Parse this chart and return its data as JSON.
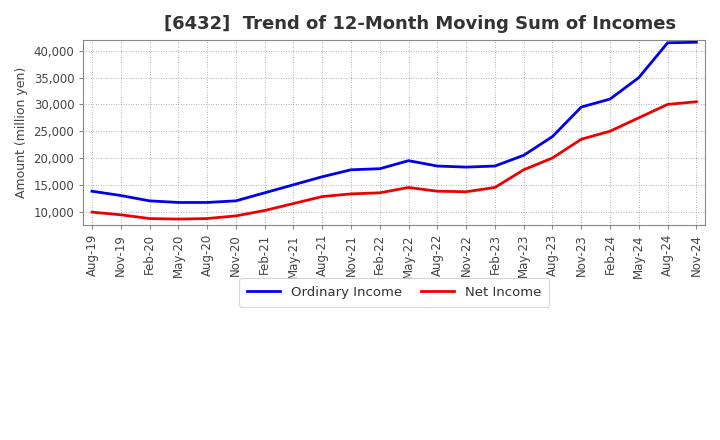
{
  "title": "[6432]  Trend of 12-Month Moving Sum of Incomes",
  "ylabel": "Amount (million yen)",
  "background_color": "#ffffff",
  "plot_bg_color": "#ffffff",
  "grid_color": "#999999",
  "ordinary_income_color": "#0000ee",
  "net_income_color": "#ee0000",
  "ordinary_income_label": "Ordinary Income",
  "net_income_label": "Net Income",
  "x_labels": [
    "Aug-19",
    "Nov-19",
    "Feb-20",
    "May-20",
    "Aug-20",
    "Nov-20",
    "Feb-21",
    "May-21",
    "Aug-21",
    "Nov-21",
    "Feb-22",
    "May-22",
    "Aug-22",
    "Nov-22",
    "Feb-23",
    "May-23",
    "Aug-23",
    "Nov-23",
    "Feb-24",
    "May-24",
    "Aug-24",
    "Nov-24"
  ],
  "ordinary_income": [
    13800,
    13000,
    12000,
    11700,
    11700,
    12000,
    13500,
    15000,
    16500,
    17800,
    18000,
    19500,
    18500,
    18300,
    18500,
    20500,
    24000,
    29500,
    31000,
    35000,
    41500,
    41600
  ],
  "net_income": [
    9900,
    9400,
    8700,
    8600,
    8700,
    9200,
    10200,
    11500,
    12800,
    13300,
    13500,
    14500,
    13800,
    13700,
    14500,
    17800,
    20000,
    23500,
    25000,
    27500,
    30000,
    30500
  ],
  "ylim_min": 7500,
  "ylim_max": 42000,
  "yticks": [
    10000,
    15000,
    20000,
    25000,
    30000,
    35000,
    40000
  ],
  "ytick_labels": [
    "10,000",
    "15,000",
    "20,000",
    "25,000",
    "30,000",
    "35,000",
    "40,000"
  ],
  "line_width": 2.0,
  "title_fontsize": 13,
  "tick_fontsize": 8.5,
  "ylabel_fontsize": 9,
  "legend_fontsize": 9.5
}
